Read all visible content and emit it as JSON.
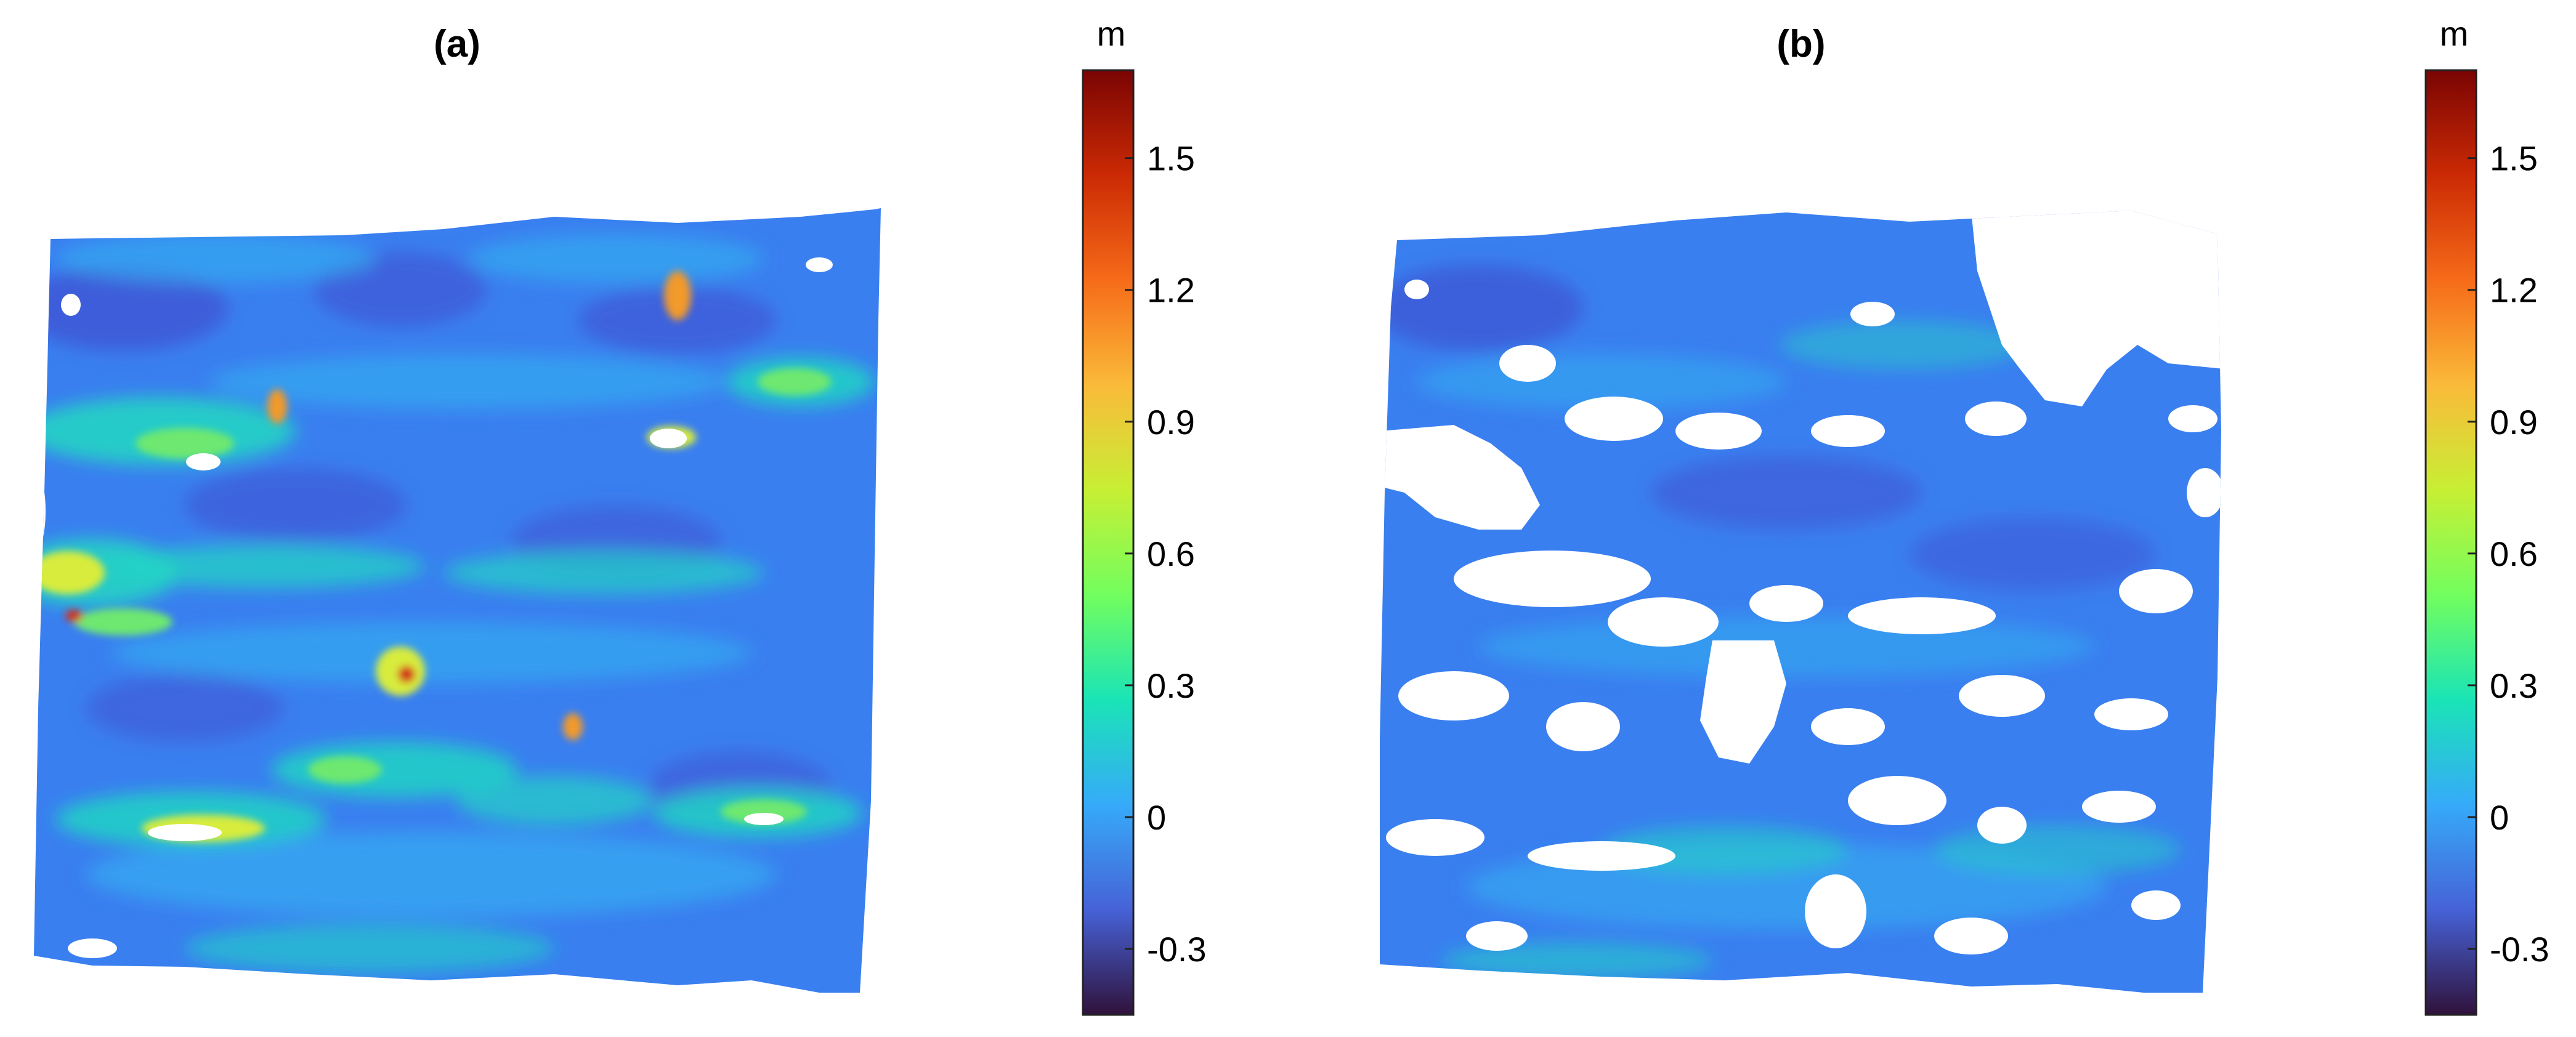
{
  "panels": [
    {
      "title": "(a)",
      "colorbar": {
        "unit": "m",
        "min": -0.45,
        "max": 1.7,
        "ticks": [
          {
            "value": 1.5,
            "label": "1.5"
          },
          {
            "value": 1.2,
            "label": "1.2"
          },
          {
            "value": 0.9,
            "label": "0.9"
          },
          {
            "value": 0.6,
            "label": "0.6"
          },
          {
            "value": 0.3,
            "label": "0.3"
          },
          {
            "value": 0,
            "label": "0"
          },
          {
            "value": -0.3,
            "label": "-0.3"
          }
        ]
      }
    },
    {
      "title": "(b)",
      "colorbar": {
        "unit": "m",
        "min": -0.45,
        "max": 1.7,
        "ticks": [
          {
            "value": 1.5,
            "label": "1.5"
          },
          {
            "value": 1.2,
            "label": "1.2"
          },
          {
            "value": 0.9,
            "label": "0.9"
          },
          {
            "value": 0.6,
            "label": "0.6"
          },
          {
            "value": 0.3,
            "label": "0.3"
          },
          {
            "value": 0,
            "label": "0"
          },
          {
            "value": -0.3,
            "label": "-0.3"
          }
        ]
      }
    }
  ],
  "colormap": [
    "#30123b",
    "#4662d7",
    "#36aaf9",
    "#1ae4b6",
    "#72fe5e",
    "#c7ef34",
    "#faba39",
    "#f66b19",
    "#cb2a04",
    "#7a0403"
  ],
  "map_colors": {
    "base": "#3a7ff0",
    "dark": "#3f4fd0",
    "light": "#34aaf0",
    "cyan": "#22d4c4",
    "green": "#6ee870",
    "yellow": "#d8ec3c",
    "orange": "#f29a2a",
    "red": "#d4321a"
  }
}
